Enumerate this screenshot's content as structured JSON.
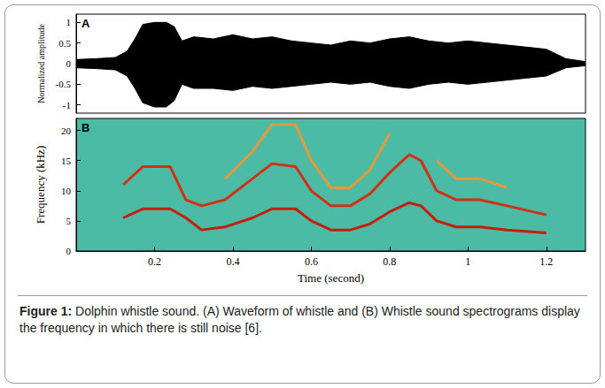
{
  "chart_data": [
    {
      "type": "area",
      "panel": "A",
      "ylabel": "Normalized amplitude",
      "x": [
        0,
        0.05,
        0.1,
        0.13,
        0.15,
        0.17,
        0.2,
        0.23,
        0.25,
        0.27,
        0.3,
        0.35,
        0.4,
        0.45,
        0.5,
        0.55,
        0.6,
        0.65,
        0.7,
        0.75,
        0.8,
        0.85,
        0.9,
        0.95,
        1.0,
        1.05,
        1.1,
        1.15,
        1.2,
        1.25,
        1.3
      ],
      "series": [
        {
          "color": "#000000",
          "values": [
            0.1,
            0.12,
            0.15,
            0.3,
            0.6,
            0.95,
            1.0,
            1.0,
            0.9,
            0.55,
            0.65,
            0.6,
            0.7,
            0.6,
            0.65,
            0.55,
            0.5,
            0.45,
            0.55,
            0.5,
            0.6,
            0.65,
            0.55,
            0.5,
            0.55,
            0.5,
            0.45,
            0.4,
            0.35,
            0.12,
            0.05
          ]
        },
        {
          "color": "#000000",
          "values": [
            -0.1,
            -0.12,
            -0.15,
            -0.3,
            -0.6,
            -0.95,
            -1.05,
            -1.05,
            -0.9,
            -0.5,
            -0.6,
            -0.6,
            -0.65,
            -0.55,
            -0.6,
            -0.55,
            -0.5,
            -0.45,
            -0.5,
            -0.45,
            -0.55,
            -0.6,
            -0.5,
            -0.45,
            -0.5,
            -0.45,
            -0.4,
            -0.35,
            -0.3,
            -0.1,
            -0.05
          ]
        }
      ],
      "xlim": [
        0,
        1.3
      ],
      "ylim": [
        -1.2,
        1.2
      ],
      "yticks": [
        -1,
        -0.5,
        0,
        0.5,
        1
      ],
      "grid": false,
      "tick_labels": "y"
    },
    {
      "type": "line",
      "panel": "B",
      "xlabel": "Time (second)",
      "ylabel": "Frequency (kHz)",
      "x": [
        0.12,
        0.17,
        0.24,
        0.28,
        0.32,
        0.38,
        0.45,
        0.5,
        0.56,
        0.6,
        0.65,
        0.7,
        0.75,
        0.8,
        0.85,
        0.88,
        0.92,
        0.97,
        1.03,
        1.1,
        1.2
      ],
      "series": [
        {
          "color": "#c41e0a",
          "values": [
            5.5,
            7,
            7,
            5.5,
            3.5,
            4,
            5.5,
            7,
            7,
            5,
            3.5,
            3.5,
            4.5,
            6.5,
            8,
            7.5,
            5,
            4,
            4,
            3.5,
            3
          ]
        },
        {
          "color": "#d2300f",
          "values": [
            11,
            14,
            14,
            8.5,
            7.5,
            8.5,
            12,
            14.5,
            14,
            10,
            7.5,
            7.5,
            9.5,
            13,
            16,
            15,
            10,
            8.5,
            8.5,
            7.5,
            6
          ]
        },
        {
          "color": "#e59a3a",
          "values": [
            null,
            null,
            null,
            null,
            null,
            12,
            16.5,
            21,
            21,
            15,
            10.5,
            10.5,
            13.5,
            19.5,
            null,
            null,
            15,
            12,
            12,
            10.5,
            null
          ]
        }
      ],
      "xlim": [
        0,
        1.3
      ],
      "xticks": [
        0.2,
        0.4,
        0.6,
        0.8,
        1,
        1.2
      ],
      "ylim": [
        0,
        22
      ],
      "yticks": [
        0,
        5,
        10,
        15,
        20
      ],
      "grid": false,
      "marker": "none"
    }
  ],
  "caption": {
    "label": "Figure 1:",
    "text": "Dolphin whistle sound. (A) Waveform of whistle and (B) Whistle sound spectrograms display the frequency in which there is still noise [6]."
  }
}
